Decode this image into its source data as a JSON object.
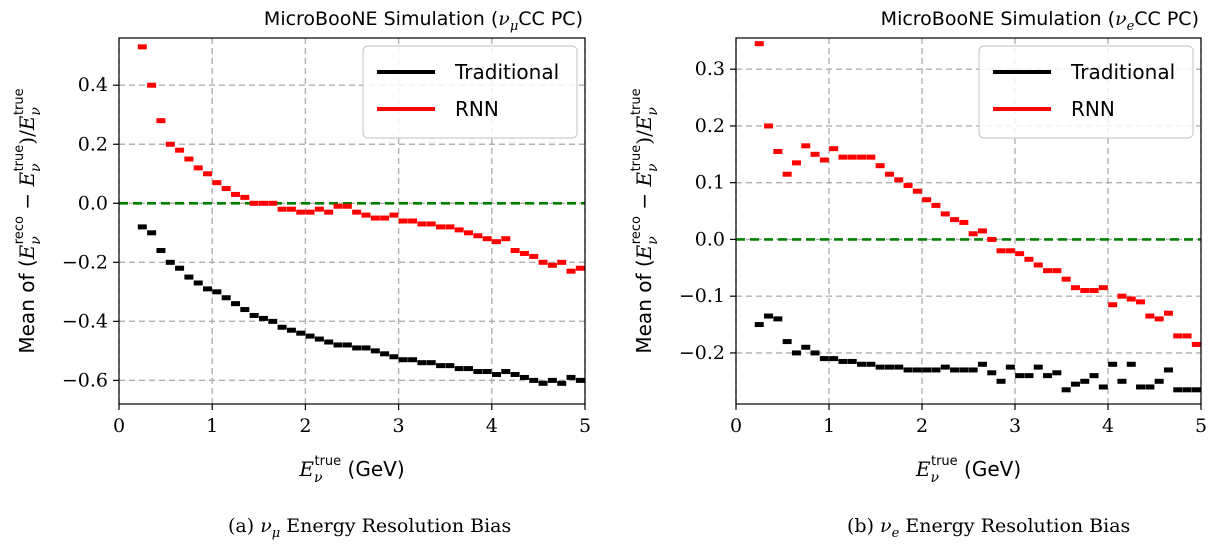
{
  "chart_data": [
    {
      "type": "scatter",
      "title": "MicroBooNE Simulation (ν_μCC PC)",
      "title_parts": {
        "prefix": "MicroBooNE Simulation (",
        "nu": "ν",
        "sub": "μ",
        "suffix": "CC PC)"
      },
      "caption": "(a) ν_μ Energy Resolution Bias",
      "caption_parts": {
        "prefix": "(a) ",
        "nu": "ν",
        "sub": "μ",
        "suffix": " Energy Resolution Bias"
      },
      "xlabel": "E_ν^true (GeV)",
      "ylabel": "Mean of (E_ν^reco − E_ν^true)/E_ν^true",
      "xlim": [
        0,
        5
      ],
      "ylim": [
        -0.68,
        0.56
      ],
      "xticks": [
        0,
        1,
        2,
        3,
        4,
        5
      ],
      "yticks": [
        -0.6,
        -0.4,
        -0.2,
        0.0,
        0.2,
        0.4
      ],
      "ytick_labels": [
        "−0.6",
        "−0.4",
        "−0.2",
        "0.0",
        "0.2",
        "0.4"
      ],
      "grid": true,
      "legend": "top-right",
      "reference_line": {
        "y": 0,
        "color": "#008000",
        "style": "dashed"
      },
      "series": [
        {
          "name": "Traditional",
          "color": "#000000",
          "x": [
            0.25,
            0.35,
            0.45,
            0.55,
            0.65,
            0.75,
            0.85,
            0.95,
            1.05,
            1.15,
            1.25,
            1.35,
            1.45,
            1.55,
            1.65,
            1.75,
            1.85,
            1.95,
            2.05,
            2.15,
            2.25,
            2.35,
            2.45,
            2.55,
            2.65,
            2.75,
            2.85,
            2.95,
            3.05,
            3.15,
            3.25,
            3.35,
            3.45,
            3.55,
            3.65,
            3.75,
            3.85,
            3.95,
            4.05,
            4.15,
            4.25,
            4.35,
            4.45,
            4.55,
            4.65,
            4.75,
            4.85,
            4.95
          ],
          "y": [
            -0.08,
            -0.1,
            -0.16,
            -0.2,
            -0.22,
            -0.25,
            -0.27,
            -0.29,
            -0.3,
            -0.32,
            -0.34,
            -0.36,
            -0.38,
            -0.39,
            -0.4,
            -0.42,
            -0.43,
            -0.44,
            -0.45,
            -0.46,
            -0.47,
            -0.48,
            -0.48,
            -0.49,
            -0.49,
            -0.5,
            -0.51,
            -0.52,
            -0.53,
            -0.53,
            -0.54,
            -0.54,
            -0.55,
            -0.55,
            -0.56,
            -0.56,
            -0.57,
            -0.57,
            -0.58,
            -0.57,
            -0.58,
            -0.59,
            -0.6,
            -0.61,
            -0.6,
            -0.61,
            -0.59,
            -0.6
          ]
        },
        {
          "name": "RNN",
          "color": "#ff0000",
          "x": [
            0.25,
            0.35,
            0.45,
            0.55,
            0.65,
            0.75,
            0.85,
            0.95,
            1.05,
            1.15,
            1.25,
            1.35,
            1.45,
            1.55,
            1.65,
            1.75,
            1.85,
            1.95,
            2.05,
            2.15,
            2.25,
            2.35,
            2.45,
            2.55,
            2.65,
            2.75,
            2.85,
            2.95,
            3.05,
            3.15,
            3.25,
            3.35,
            3.45,
            3.55,
            3.65,
            3.75,
            3.85,
            3.95,
            4.05,
            4.15,
            4.25,
            4.35,
            4.45,
            4.55,
            4.65,
            4.75,
            4.85,
            4.95
          ],
          "y": [
            0.53,
            0.4,
            0.28,
            0.2,
            0.18,
            0.15,
            0.12,
            0.1,
            0.07,
            0.05,
            0.03,
            0.02,
            0.0,
            0.0,
            0.0,
            -0.02,
            -0.02,
            -0.03,
            -0.03,
            -0.02,
            -0.03,
            -0.01,
            -0.01,
            -0.03,
            -0.04,
            -0.05,
            -0.05,
            -0.04,
            -0.06,
            -0.06,
            -0.07,
            -0.07,
            -0.08,
            -0.08,
            -0.09,
            -0.1,
            -0.11,
            -0.12,
            -0.13,
            -0.12,
            -0.16,
            -0.17,
            -0.18,
            -0.2,
            -0.21,
            -0.2,
            -0.23,
            -0.22
          ]
        }
      ]
    },
    {
      "type": "scatter",
      "title": "MicroBooNE Simulation (ν_eCC PC)",
      "title_parts": {
        "prefix": "MicroBooNE Simulation (",
        "nu": "ν",
        "sub": "e",
        "suffix": "CC PC)"
      },
      "caption": "(b) ν_e Energy Resolution Bias",
      "caption_parts": {
        "prefix": "(b) ",
        "nu": "ν",
        "sub": "e",
        "suffix": " Energy Resolution Bias"
      },
      "xlabel": "E_ν^true (GeV)",
      "ylabel": "Mean of (E_ν^reco − E_ν^true)/E_ν^true",
      "xlim": [
        0,
        5
      ],
      "ylim": [
        -0.29,
        0.355
      ],
      "xticks": [
        0,
        1,
        2,
        3,
        4,
        5
      ],
      "yticks": [
        -0.2,
        -0.1,
        0.0,
        0.1,
        0.2,
        0.3
      ],
      "ytick_labels": [
        "−0.2",
        "−0.1",
        "0.0",
        "0.1",
        "0.2",
        "0.3"
      ],
      "grid": true,
      "legend": "top-right",
      "reference_line": {
        "y": 0,
        "color": "#008000",
        "style": "dashed"
      },
      "series": [
        {
          "name": "Traditional",
          "color": "#000000",
          "x": [
            0.25,
            0.35,
            0.45,
            0.55,
            0.65,
            0.75,
            0.85,
            0.95,
            1.05,
            1.15,
            1.25,
            1.35,
            1.45,
            1.55,
            1.65,
            1.75,
            1.85,
            1.95,
            2.05,
            2.15,
            2.25,
            2.35,
            2.45,
            2.55,
            2.65,
            2.75,
            2.85,
            2.95,
            3.05,
            3.15,
            3.25,
            3.35,
            3.45,
            3.55,
            3.65,
            3.75,
            3.85,
            3.95,
            4.05,
            4.15,
            4.25,
            4.35,
            4.45,
            4.55,
            4.65,
            4.75,
            4.85,
            4.95
          ],
          "y": [
            -0.15,
            -0.135,
            -0.14,
            -0.18,
            -0.2,
            -0.19,
            -0.2,
            -0.21,
            -0.21,
            -0.215,
            -0.215,
            -0.22,
            -0.22,
            -0.225,
            -0.225,
            -0.225,
            -0.23,
            -0.23,
            -0.23,
            -0.23,
            -0.225,
            -0.23,
            -0.23,
            -0.23,
            -0.22,
            -0.235,
            -0.25,
            -0.225,
            -0.24,
            -0.24,
            -0.225,
            -0.24,
            -0.235,
            -0.265,
            -0.255,
            -0.25,
            -0.24,
            -0.26,
            -0.22,
            -0.25,
            -0.22,
            -0.26,
            -0.26,
            -0.25,
            -0.23,
            -0.265,
            -0.265,
            -0.265
          ]
        },
        {
          "name": "RNN",
          "color": "#ff0000",
          "x": [
            0.25,
            0.35,
            0.45,
            0.55,
            0.65,
            0.75,
            0.85,
            0.95,
            1.05,
            1.15,
            1.25,
            1.35,
            1.45,
            1.55,
            1.65,
            1.75,
            1.85,
            1.95,
            2.05,
            2.15,
            2.25,
            2.35,
            2.45,
            2.55,
            2.65,
            2.75,
            2.85,
            2.95,
            3.05,
            3.15,
            3.25,
            3.35,
            3.45,
            3.55,
            3.65,
            3.75,
            3.85,
            3.95,
            4.05,
            4.15,
            4.25,
            4.35,
            4.45,
            4.55,
            4.65,
            4.75,
            4.85,
            4.95
          ],
          "y": [
            0.345,
            0.2,
            0.155,
            0.115,
            0.135,
            0.165,
            0.15,
            0.14,
            0.16,
            0.145,
            0.145,
            0.145,
            0.145,
            0.13,
            0.115,
            0.105,
            0.095,
            0.085,
            0.07,
            0.06,
            0.045,
            0.035,
            0.03,
            0.01,
            0.015,
            0.0,
            -0.02,
            -0.02,
            -0.025,
            -0.035,
            -0.045,
            -0.055,
            -0.055,
            -0.07,
            -0.085,
            -0.09,
            -0.09,
            -0.085,
            -0.115,
            -0.1,
            -0.105,
            -0.11,
            -0.135,
            -0.14,
            -0.13,
            -0.17,
            -0.17,
            -0.185
          ]
        }
      ]
    }
  ]
}
